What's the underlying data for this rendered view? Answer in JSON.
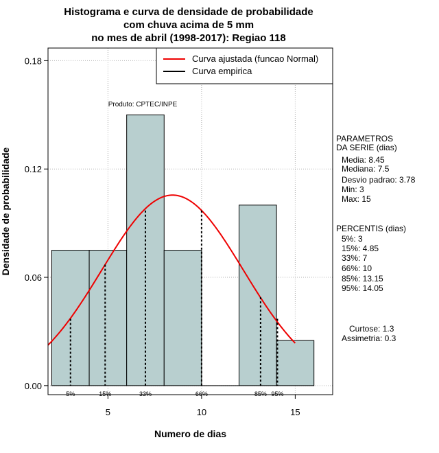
{
  "title": {
    "line1": "Histograma e curva de densidade de probabilidade",
    "line2": "com chuva acima de 5 mm",
    "line3": "no mes de abril (1998-2017): Regiao 118"
  },
  "chart_data": {
    "type": "bar",
    "xlabel": "Numero de dias",
    "ylabel": "Densidade de probabilidade",
    "xlim": [
      1.8,
      17.0
    ],
    "ylim": [
      -0.005,
      0.187
    ],
    "x_ticks": [
      5,
      10,
      15
    ],
    "y_ticks": [
      0.0,
      0.06,
      0.12,
      0.18
    ],
    "y_tick_labels": [
      "0.00",
      "0.06",
      "0.12",
      "0.18"
    ],
    "grid": true,
    "bins": [
      {
        "x0": 2,
        "x1": 4,
        "density": 0.075
      },
      {
        "x0": 4,
        "x1": 6,
        "density": 0.075
      },
      {
        "x0": 6,
        "x1": 8,
        "density": 0.15
      },
      {
        "x0": 8,
        "x1": 10,
        "density": 0.075
      },
      {
        "x0": 10,
        "x1": 12,
        "density": 0.0
      },
      {
        "x0": 12,
        "x1": 14,
        "density": 0.1
      },
      {
        "x0": 14,
        "x1": 16,
        "density": 0.025
      }
    ],
    "bar_color": "#b8cfcf",
    "normal_curve": {
      "name": "Curva ajustada (funcao Normal)",
      "color": "#ee0000",
      "mean": 8.45,
      "sd": 3.78,
      "x_range": [
        1.8,
        15.0
      ]
    },
    "empirical_curve": {
      "name": "Curva empirica",
      "color": "#000000"
    },
    "legend_position": "top-right",
    "percentile_markers": [
      {
        "label": "5%",
        "x": 3.0,
        "y": 0.037
      },
      {
        "label": "15%",
        "x": 4.85,
        "y": 0.067
      },
      {
        "label": "33%",
        "x": 7.0,
        "y": 0.097
      },
      {
        "label": "66%",
        "x": 10.0,
        "y": 0.097
      },
      {
        "label": "85%",
        "x": 13.15,
        "y": 0.049
      },
      {
        "label": "95%",
        "x": 14.05,
        "y": 0.037
      }
    ],
    "annotation": "Produto: CPTEC/INPE"
  },
  "parametros": {
    "header1": "PARAMETROS",
    "header2": "DA SERIE (dias)",
    "media": "Media: 8.45",
    "mediana": "Mediana: 7.5",
    "desvio": "Desvio padrao: 3.78",
    "min": "Min: 3",
    "max": "Max: 15"
  },
  "percentis": {
    "header": "PERCENTIS (dias)",
    "p5": "5%: 3",
    "p15": "15%: 4.85",
    "p33": "33%: 7",
    "p66": "66%: 10",
    "p85": "85%: 13.15",
    "p95": "95%: 14.05"
  },
  "shape": {
    "curtose": "Curtose: 1.3",
    "assimetria": "Assimetria: 0.3"
  }
}
